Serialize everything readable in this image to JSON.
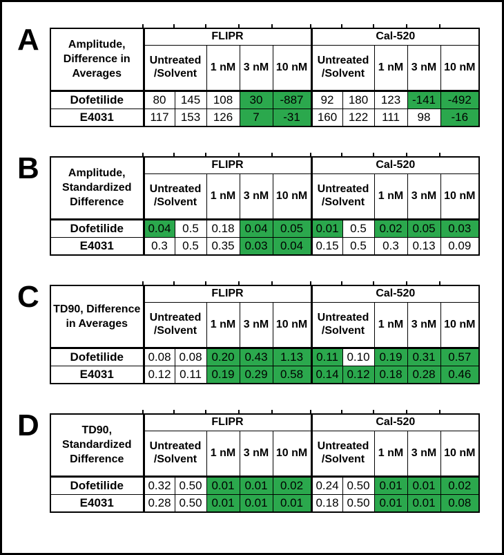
{
  "figure": {
    "colors": {
      "highlight": "#2BA84D",
      "border": "#000000",
      "background": "#FFFFFF"
    },
    "column_headers": {
      "flipr": "FLIPR",
      "cal520": "Cal-520",
      "untreated_lines": [
        "Untreated",
        "/Solvent"
      ],
      "dose_labels": [
        "1 nM",
        "3 nM",
        "10 nM"
      ]
    },
    "panels": [
      {
        "letter": "A",
        "title_lines": [
          "Amplitude,",
          "Difference in",
          "Averages"
        ],
        "rows": [
          {
            "label": "Dofetilide",
            "values": [
              "80",
              "145",
              "108",
              "30",
              "-887",
              "92",
              "180",
              "123",
              "-141",
              "-492"
            ],
            "highlight": [
              0,
              0,
              0,
              1,
              1,
              0,
              0,
              0,
              1,
              1
            ]
          },
          {
            "label": "E4031",
            "values": [
              "117",
              "153",
              "126",
              "7",
              "-31",
              "160",
              "122",
              "111",
              "98",
              "-16"
            ],
            "highlight": [
              0,
              0,
              0,
              1,
              1,
              0,
              0,
              0,
              0,
              1
            ]
          }
        ]
      },
      {
        "letter": "B",
        "title_lines": [
          "Amplitude,",
          "Standardized",
          "Difference"
        ],
        "rows": [
          {
            "label": "Dofetilide",
            "values": [
              "0.04",
              "0.5",
              "0.18",
              "0.04",
              "0.05",
              "0.01",
              "0.5",
              "0.02",
              "0.05",
              "0.03"
            ],
            "highlight": [
              1,
              0,
              0,
              1,
              1,
              1,
              0,
              1,
              1,
              1
            ]
          },
          {
            "label": "E4031",
            "values": [
              "0.3",
              "0.5",
              "0.35",
              "0.03",
              "0.04",
              "0.15",
              "0.5",
              "0.3",
              "0.13",
              "0.09"
            ],
            "highlight": [
              0,
              0,
              0,
              1,
              1,
              0,
              0,
              0,
              0,
              0
            ]
          }
        ]
      },
      {
        "letter": "C",
        "title_lines": [
          "TD90, Difference",
          "in Averages"
        ],
        "rows": [
          {
            "label": "Dofetilide",
            "values": [
              "0.08",
              "0.08",
              "0.20",
              "0.43",
              "1.13",
              "0.11",
              "0.10",
              "0.19",
              "0.31",
              "0.57"
            ],
            "highlight": [
              0,
              0,
              1,
              1,
              1,
              1,
              0,
              1,
              1,
              1
            ]
          },
          {
            "label": "E4031",
            "values": [
              "0.12",
              "0.11",
              "0.19",
              "0.29",
              "0.58",
              "0.14",
              "0.12",
              "0.18",
              "0.28",
              "0.46"
            ],
            "highlight": [
              0,
              0,
              1,
              1,
              1,
              1,
              1,
              1,
              1,
              1
            ]
          }
        ]
      },
      {
        "letter": "D",
        "title_lines": [
          "TD90,",
          "Standardized",
          "Difference"
        ],
        "rows": [
          {
            "label": "Dofetilide",
            "values": [
              "0.32",
              "0.50",
              "0.01",
              "0.01",
              "0.02",
              "0.24",
              "0.50",
              "0.01",
              "0.01",
              "0.02"
            ],
            "highlight": [
              0,
              0,
              1,
              1,
              1,
              0,
              0,
              1,
              1,
              1
            ]
          },
          {
            "label": "E4031",
            "values": [
              "0.28",
              "0.50",
              "0.01",
              "0.01",
              "0.01",
              "0.18",
              "0.50",
              "0.01",
              "0.01",
              "0.08"
            ],
            "highlight": [
              0,
              0,
              1,
              1,
              1,
              0,
              0,
              1,
              1,
              1
            ]
          }
        ]
      }
    ]
  }
}
